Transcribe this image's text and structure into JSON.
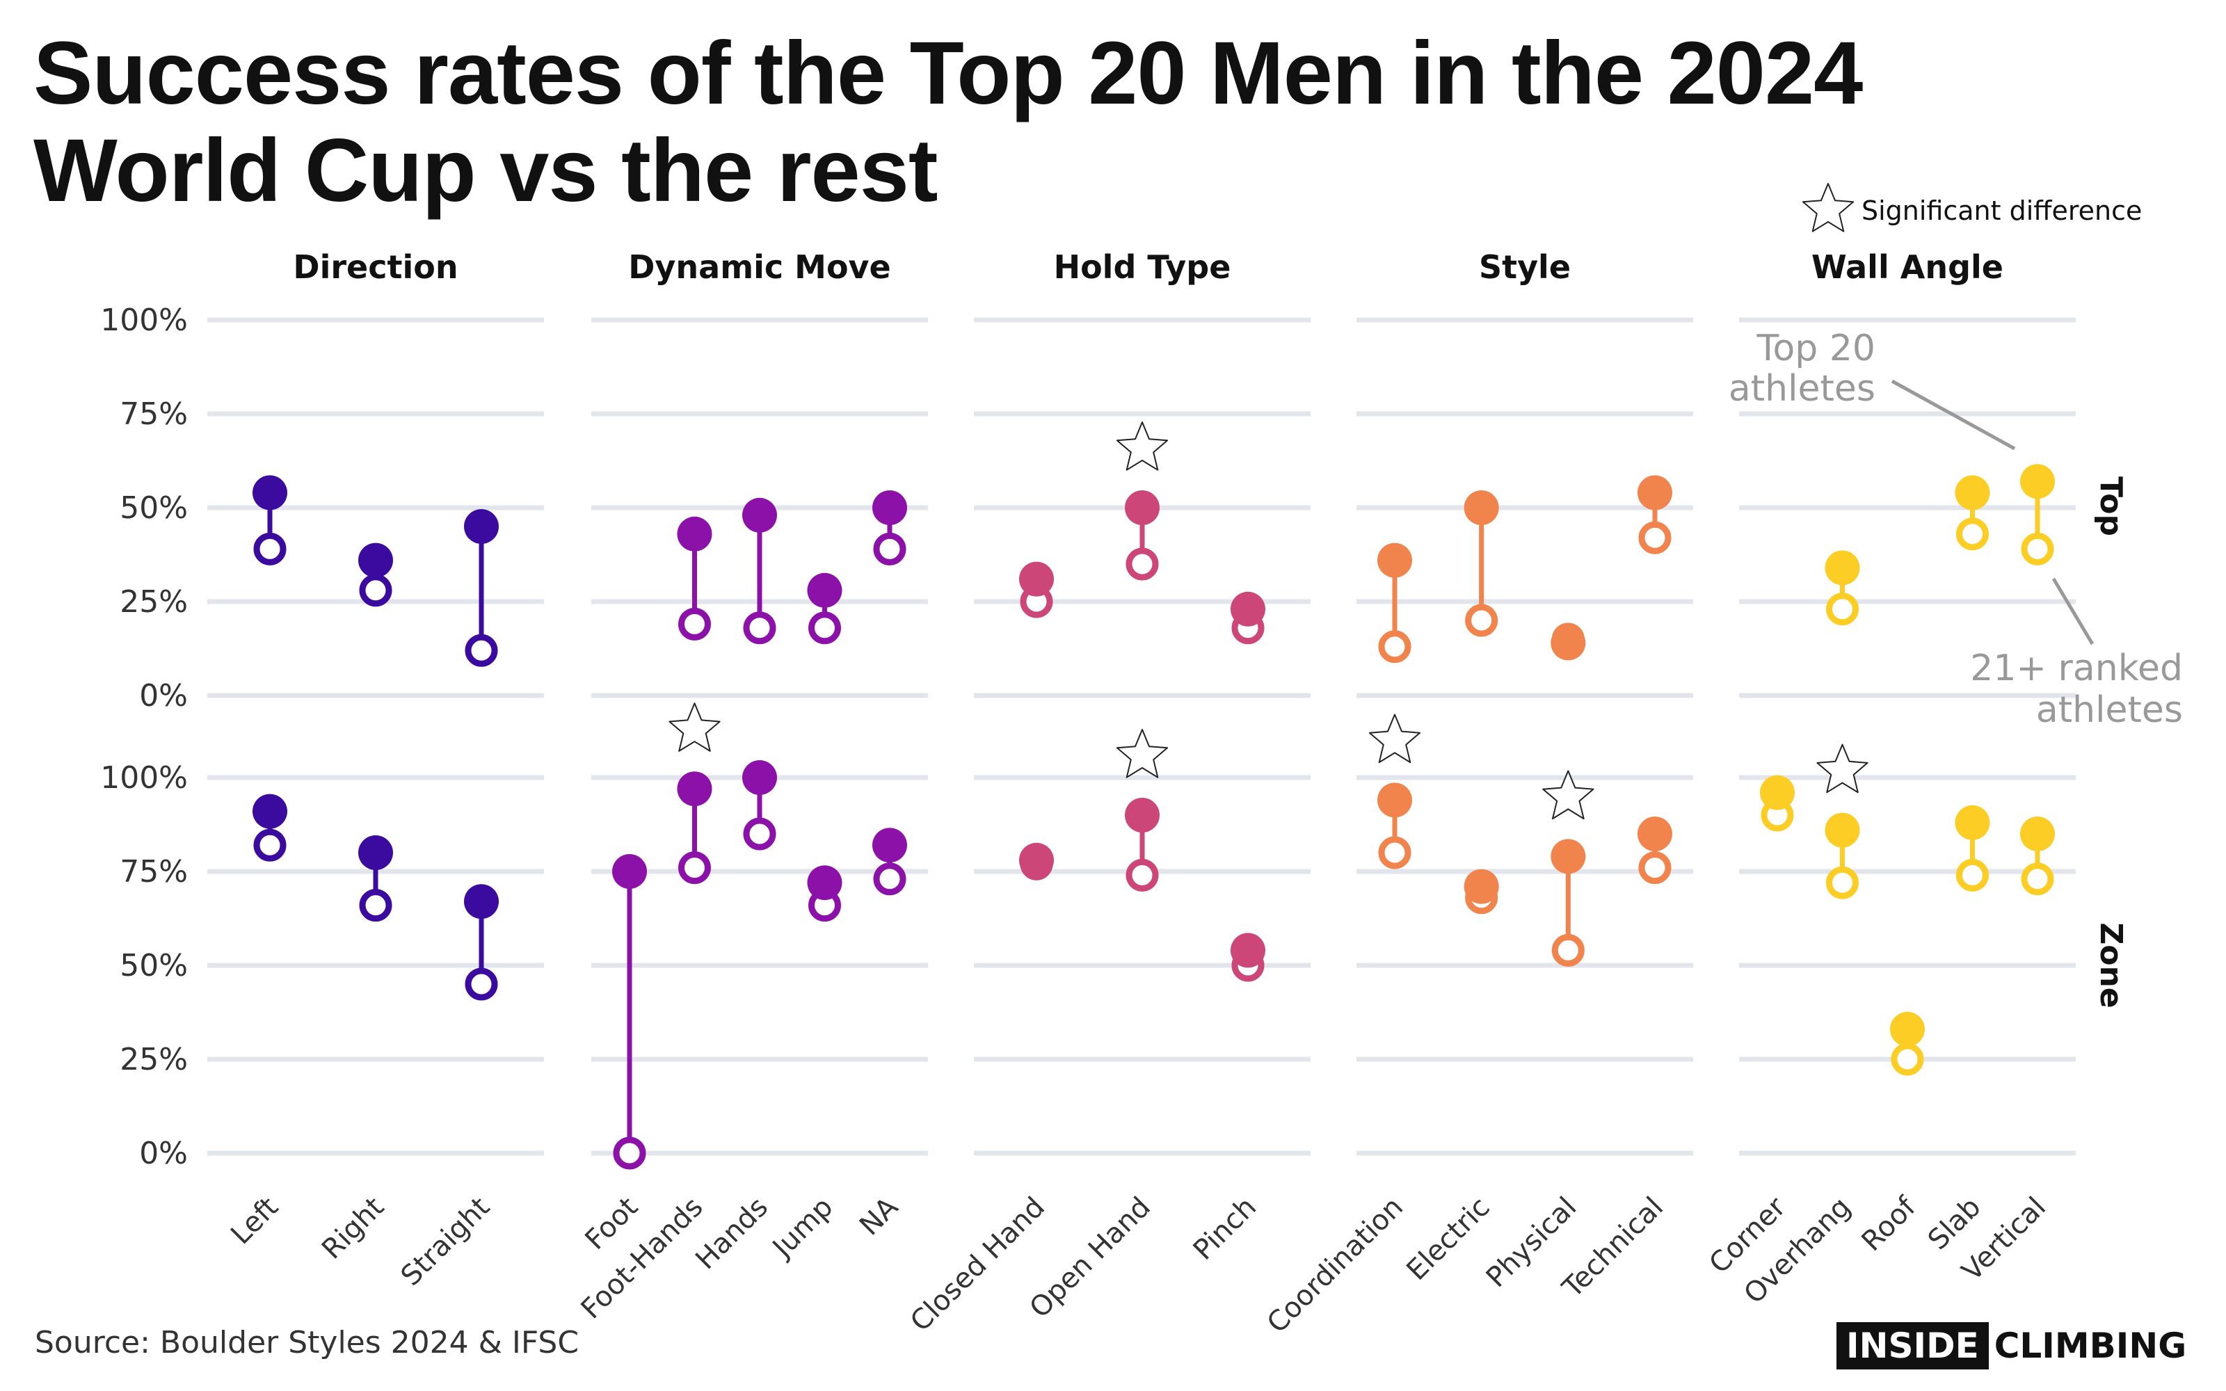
{
  "title": "Success rates of the Top 20 Men in the 2024 World Cup vs the rest",
  "legend": {
    "significant": "Significant difference"
  },
  "annotations": {
    "top20": [
      "Top 20",
      "athletes"
    ],
    "rest": [
      "21+ ranked",
      "athletes"
    ]
  },
  "source": "Source: Boulder Styles 2024 & IFSC",
  "logo": {
    "part1": "INSIDE",
    "part2": "CLIMBING"
  },
  "chart_data": {
    "type": "dumbbell",
    "title": "Success rates of the Top 20 Men in the 2024 World Cup vs the rest",
    "ylim": [
      0,
      100
    ],
    "yticks": [
      "0%",
      "25%",
      "50%",
      "75%",
      "100%"
    ],
    "rows": [
      "Top",
      "Zone"
    ],
    "series_names": [
      "Top 20 athletes",
      "21+ ranked athletes"
    ],
    "panels": [
      {
        "name": "Direction",
        "color": "#3b0ba0",
        "categories": [
          "Left",
          "Right",
          "Straight"
        ],
        "Top": {
          "top20": [
            54,
            36,
            45
          ],
          "rest": [
            39,
            28,
            12
          ],
          "significant": [
            false,
            false,
            false
          ]
        },
        "Zone": {
          "top20": [
            91,
            80,
            67
          ],
          "rest": [
            82,
            66,
            45
          ],
          "significant": [
            false,
            false,
            false
          ]
        }
      },
      {
        "name": "Dynamic Move",
        "color": "#8c11a8",
        "categories": [
          "Foot",
          "Foot-Hands",
          "Hands",
          "Jump",
          "NA"
        ],
        "Top": {
          "top20": [
            null,
            43,
            48,
            28,
            50
          ],
          "rest": [
            null,
            19,
            18,
            18,
            39
          ],
          "significant": [
            false,
            false,
            false,
            false,
            false
          ]
        },
        "Zone": {
          "top20": [
            75,
            97,
            100,
            72,
            82
          ],
          "rest": [
            0,
            76,
            85,
            66,
            73
          ],
          "significant": [
            false,
            true,
            false,
            false,
            false
          ]
        }
      },
      {
        "name": "Hold Type",
        "color": "#cc4678",
        "categories": [
          "Closed Hand",
          "Open Hand",
          "Pinch"
        ],
        "Top": {
          "top20": [
            31,
            50,
            23
          ],
          "rest": [
            25,
            35,
            18
          ],
          "significant": [
            false,
            true,
            false
          ]
        },
        "Zone": {
          "top20": [
            78,
            90,
            54
          ],
          "rest": [
            77,
            74,
            50
          ],
          "significant": [
            false,
            true,
            false
          ]
        }
      },
      {
        "name": "Style",
        "color": "#f0844c",
        "categories": [
          "Coordination",
          "Electric",
          "Physical",
          "Technical"
        ],
        "Top": {
          "top20": [
            36,
            50,
            14,
            54
          ],
          "rest": [
            13,
            20,
            15,
            42
          ],
          "significant": [
            false,
            false,
            false,
            false
          ]
        },
        "Zone": {
          "top20": [
            94,
            71,
            79,
            85
          ],
          "rest": [
            80,
            68,
            54,
            76
          ],
          "significant": [
            true,
            false,
            true,
            false
          ]
        }
      },
      {
        "name": "Wall Angle",
        "color": "#fcce25",
        "categories": [
          "Corner",
          "Overhang",
          "Roof",
          "Slab",
          "Vertical"
        ],
        "Top": {
          "top20": [
            null,
            34,
            null,
            54,
            57
          ],
          "rest": [
            null,
            23,
            null,
            43,
            39
          ],
          "significant": [
            false,
            false,
            false,
            false,
            false
          ]
        },
        "Zone": {
          "top20": [
            96,
            86,
            33,
            88,
            85
          ],
          "rest": [
            90,
            72,
            25,
            74,
            73
          ],
          "significant": [
            false,
            true,
            false,
            false,
            false
          ]
        }
      }
    ]
  }
}
